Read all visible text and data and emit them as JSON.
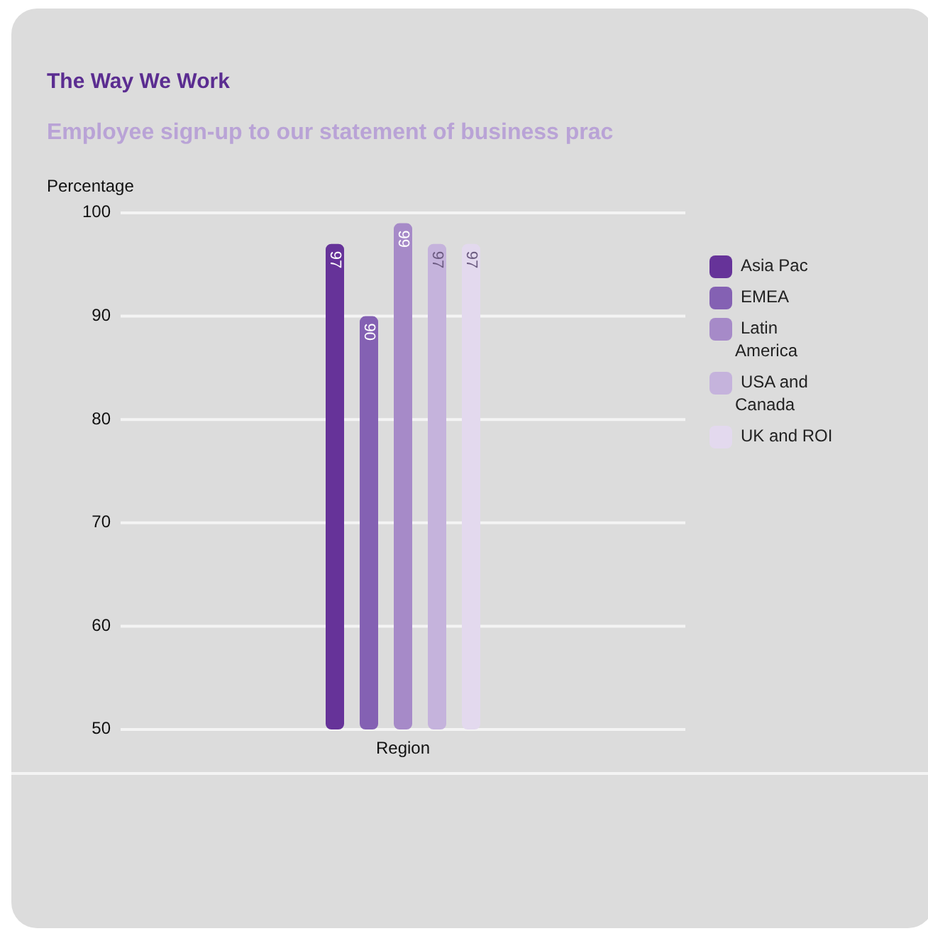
{
  "chart_data": {
    "type": "bar",
    "title": "The Way We Work",
    "subtitle": "Employee sign-up to our statement of business prac",
    "ylabel": "Percentage",
    "xlabel": "Region",
    "categories": [
      null
    ],
    "series": [
      {
        "name": "Asia Pac",
        "color": "#663399",
        "values": [
          97
        ]
      },
      {
        "name": "EMEA",
        "color": "#8461b3",
        "values": [
          90
        ]
      },
      {
        "name": "Latin America",
        "color": "#a68ac8",
        "values": [
          99
        ]
      },
      {
        "name": "USA and Canada",
        "color": "#c5b3dc",
        "values": [
          97
        ]
      },
      {
        "name": "UK and ROI",
        "color": "#e3d9ee",
        "values": [
          97
        ]
      }
    ],
    "ylim": [
      50,
      100
    ],
    "yticks": [
      50,
      60,
      70,
      80,
      90,
      100
    ],
    "grid": "y",
    "legend": "right",
    "data_labels": true
  }
}
